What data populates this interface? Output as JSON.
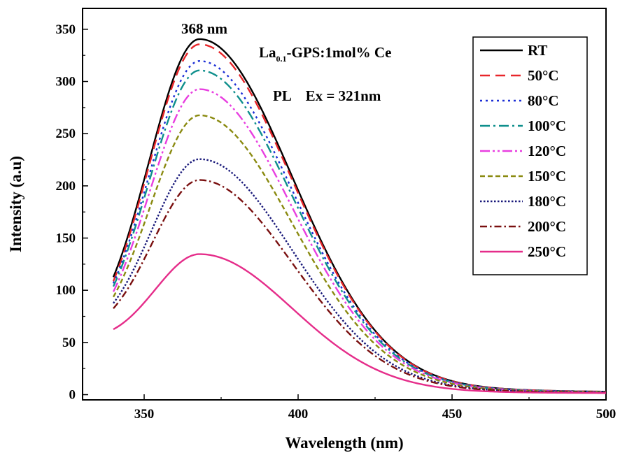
{
  "chart_data": {
    "type": "line",
    "title": "",
    "xlabel": "Wavelength (nm)",
    "ylabel": "Intensity (a.u)",
    "xlim": [
      330,
      500
    ],
    "ylim": [
      -5,
      370
    ],
    "xticks": [
      350,
      400,
      450,
      500
    ],
    "yticks": [
      0,
      50,
      100,
      150,
      200,
      250,
      300,
      350
    ],
    "grid": false,
    "legend_position": "top-right",
    "annotations": {
      "peak": "368 nm",
      "sample_main": "La",
      "sample_sub": "0.1",
      "sample_rest": "-GPS:1mol% Ce",
      "excitation": "PL    Ex = 321nm"
    },
    "series": [
      {
        "name": "RT",
        "color": "#000000",
        "dash": "",
        "peak": 340,
        "start": 112
      },
      {
        "name": "50°C",
        "color": "#e8262a",
        "dash": "14 8",
        "peak": 335,
        "start": 108
      },
      {
        "name": "80°C",
        "color": "#1c2fd6",
        "dash": "3 5",
        "peak": 319,
        "start": 106
      },
      {
        "name": "100°C",
        "color": "#0e8f8c",
        "dash": "14 5 3 5",
        "peak": 310,
        "start": 103
      },
      {
        "name": "120°C",
        "color": "#e83ee0",
        "dash": "14 4 3 4 3 4",
        "peak": 292,
        "start": 98
      },
      {
        "name": "150°C",
        "color": "#8a8a10",
        "dash": "7 4",
        "peak": 267,
        "start": 93
      },
      {
        "name": "180°C",
        "color": "#19197a",
        "dash": "2.5 2.5",
        "peak": 225,
        "start": 87
      },
      {
        "name": "200°C",
        "color": "#7a1010",
        "dash": "10 4 2.5 4",
        "peak": 205,
        "start": 82
      },
      {
        "name": "250°C",
        "color": "#e52d8a",
        "dash": "",
        "peak": 134,
        "start": 62
      }
    ]
  }
}
